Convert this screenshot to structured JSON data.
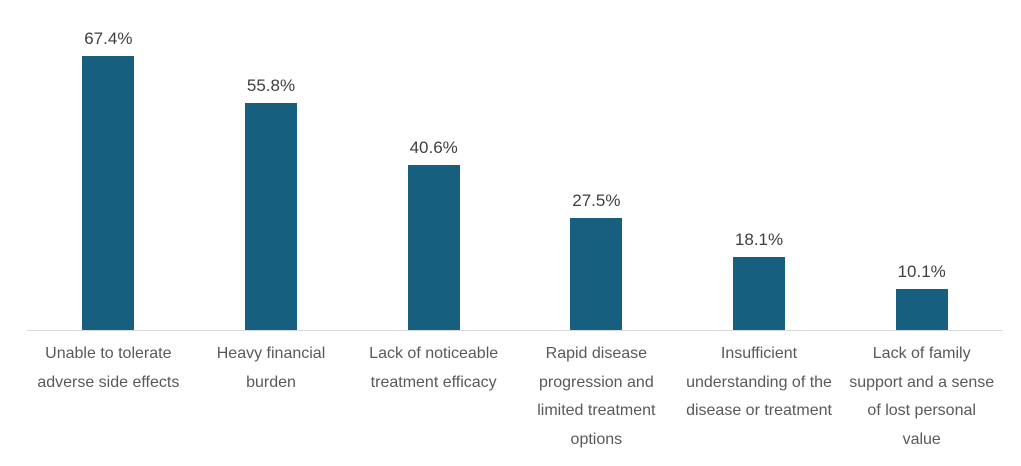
{
  "chart_data": {
    "type": "bar",
    "title": "",
    "xlabel": "",
    "ylabel": "",
    "categories": [
      "Unable to tolerate adverse side effects",
      "Heavy financial burden",
      "Lack of noticeable treatment efficacy",
      "Rapid disease progression and limited treatment options",
      "Insufficient understanding of the disease or treatment",
      "Lack of family support and a sense of lost personal value"
    ],
    "values": [
      67.4,
      55.8,
      40.6,
      27.5,
      18.1,
      10.1
    ],
    "value_labels": [
      "67.4%",
      "55.8%",
      "40.6%",
      "27.5%",
      "18.1%",
      "10.1%"
    ],
    "ylim": [
      0,
      81.7
    ],
    "grid": false,
    "legend": false,
    "y_axis_visible": false,
    "bar_color": "#175f7f",
    "axis_line_color": "#d9d9d9",
    "value_label_color": "#404040",
    "category_label_color": "#595959",
    "background_color": "#ffffff"
  }
}
